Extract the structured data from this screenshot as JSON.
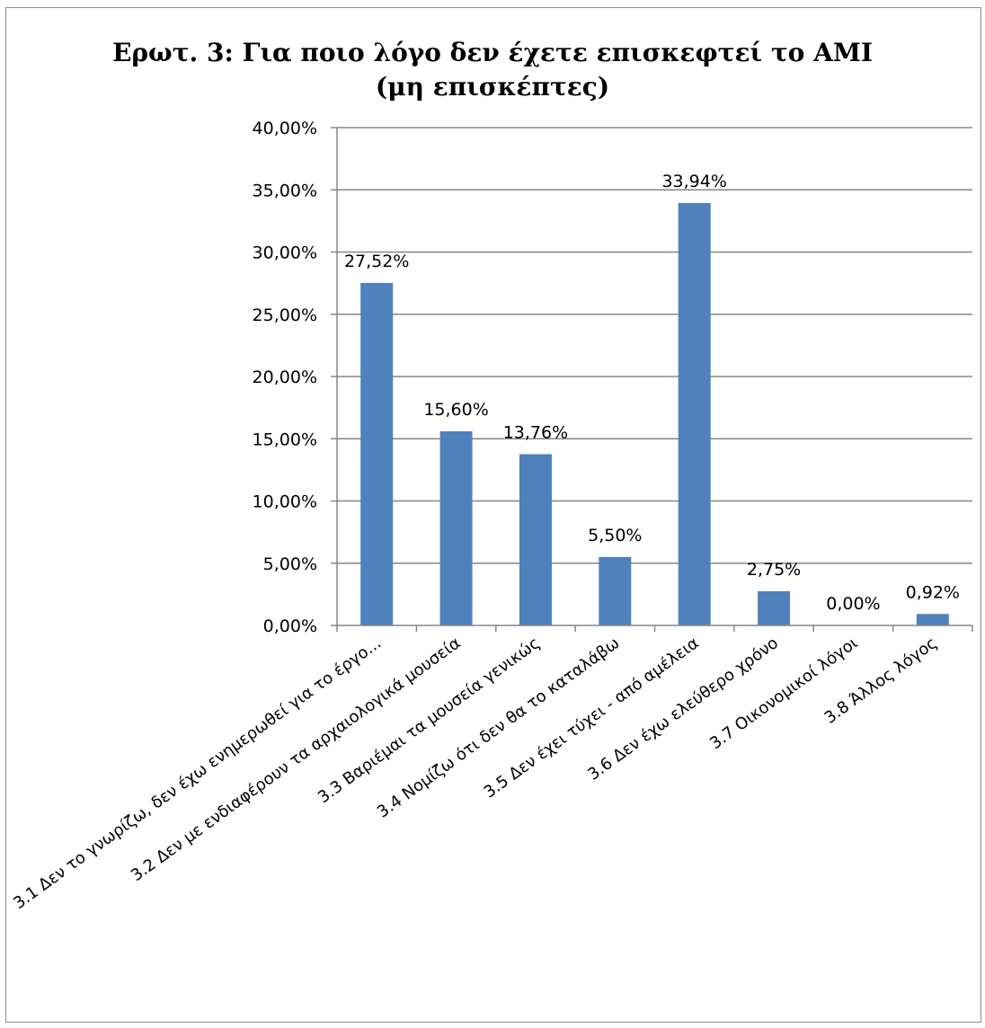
{
  "chart_data": {
    "type": "bar",
    "title_line1": "Ερωτ. 3: Για ποιο λόγο δεν έχετε επισκεφτεί το ΑΜΙ",
    "title_line2": "(μη επισκέπτες)",
    "categories": [
      "3.1 Δεν το γνωρίζω, δεν έχω ενημερωθεί για το έργο...",
      "3.2 Δεν με ενδιαφέρουν τα αρχαιολογικά μουσεία",
      "3.3 Βαριέμαι τα μουσεία γενικώς",
      "3.4 Νομίζω ότι δεν θα το καταλάβω",
      "3.5 Δεν έχει τύχει - από αμέλεια",
      "3.6 Δεν έχω ελεύθερο χρόνο",
      "3.7 Οικονομικοί λόγοι",
      "3.8 Άλλος λόγος"
    ],
    "values": [
      27.52,
      15.6,
      13.76,
      5.5,
      33.94,
      2.75,
      0.0,
      0.92
    ],
    "data_labels": [
      "27,52%",
      "15,60%",
      "13,76%",
      "5,50%",
      "33,94%",
      "2,75%",
      "0,00%",
      "0,92%"
    ],
    "ylim": [
      0,
      40
    ],
    "yticks": [
      "0,00%",
      "5,00%",
      "10,00%",
      "15,00%",
      "20,00%",
      "25,00%",
      "30,00%",
      "35,00%",
      "40,00%"
    ],
    "ytick_values": [
      0,
      5,
      10,
      15,
      20,
      25,
      30,
      35,
      40
    ],
    "grid": true,
    "legend": "none",
    "bar_color": "#4f81bd",
    "grid_color": "#868686"
  }
}
